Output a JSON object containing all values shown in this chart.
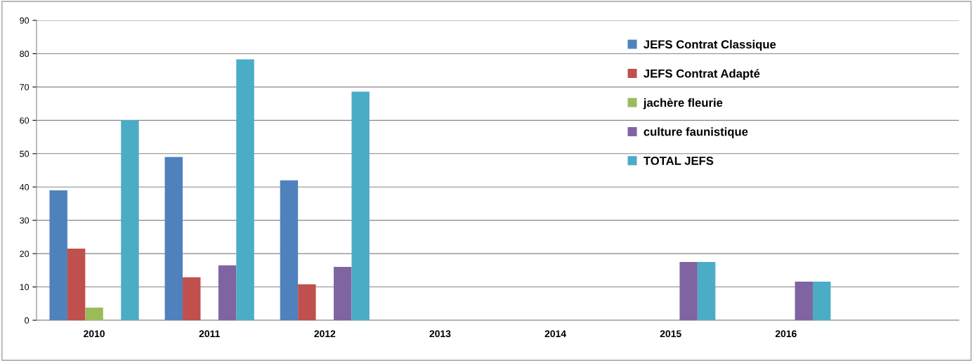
{
  "chart_data": {
    "type": "bar",
    "categories": [
      "2010",
      "2011",
      "2012",
      "2013",
      "2014",
      "2015",
      "2016",
      null
    ],
    "series": [
      {
        "name": "JEFS Contrat Classique",
        "color": "#4f81bd",
        "values": [
          39,
          49,
          42,
          null,
          null,
          null,
          null,
          null
        ]
      },
      {
        "name": "JEFS Contrat Adapté",
        "color": "#c0504d",
        "values": [
          21.5,
          12.9,
          10.8,
          null,
          null,
          null,
          null,
          null
        ]
      },
      {
        "name": "jachère fleurie",
        "color": "#9bbb59",
        "values": [
          3.8,
          null,
          null,
          null,
          null,
          null,
          null,
          null
        ]
      },
      {
        "name": "culture faunistique",
        "color": "#8064a2",
        "values": [
          null,
          16.5,
          16,
          null,
          null,
          17.5,
          11.6,
          null
        ]
      },
      {
        "name": "TOTAL JEFS",
        "color": "#4bacc6",
        "values": [
          60,
          78.3,
          68.6,
          null,
          null,
          17.5,
          11.6,
          null
        ]
      }
    ],
    "ylim": [
      0,
      90
    ],
    "yticks": [
      0,
      10,
      20,
      30,
      40,
      50,
      60,
      70,
      80,
      90
    ],
    "grid": "y",
    "legend": "top right"
  }
}
